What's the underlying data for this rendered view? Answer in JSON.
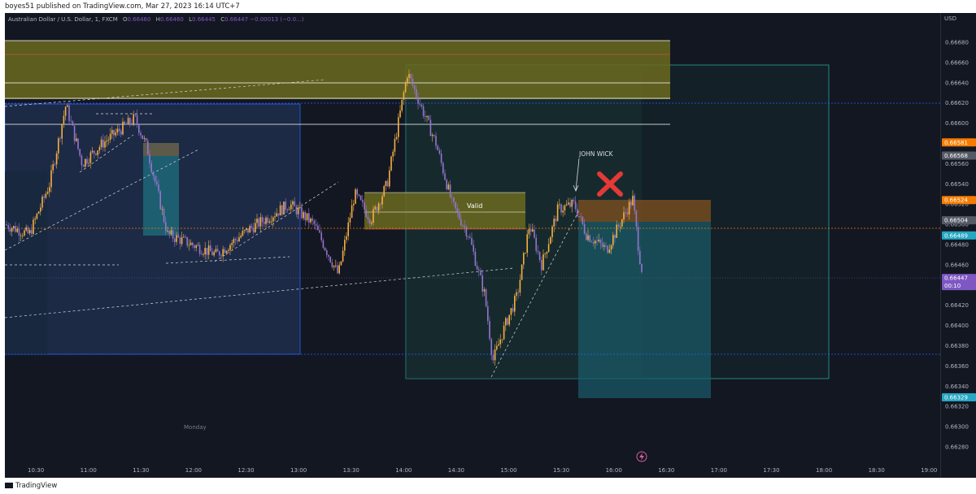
{
  "header": {
    "publisher_line": "boyes51 published on TradingView.com, Mar 27, 2023 16:14 UTC+7"
  },
  "legend": {
    "symbol": "Australian Dollar / U.S. Dollar, 1, FXCM",
    "o_label": "O",
    "o": "0.66460",
    "h_label": "H",
    "h": "0.66460",
    "l_label": "L",
    "l": "0.66445",
    "c_label": "C",
    "c": "0.66447",
    "change": "−0.00013 (−0.0...)"
  },
  "price_axis": {
    "currency": "USD",
    "ticks": [
      "0.66680",
      "0.66660",
      "0.66640",
      "0.66620",
      "0.66600",
      "0.66580",
      "0.66560",
      "0.66540",
      "0.66520",
      "0.66500",
      "0.66480",
      "0.66460",
      "0.66440",
      "0.66420",
      "0.66400",
      "0.66380",
      "0.66360",
      "0.66340",
      "0.66320",
      "0.66300",
      "0.66280"
    ],
    "badges": [
      {
        "value": "0.66581",
        "color": "#f57c00"
      },
      {
        "value": "0.66568",
        "color": "#555a66"
      },
      {
        "value": "0.66524",
        "color": "#f57c00"
      },
      {
        "value": "0.66504",
        "color": "#555a66"
      },
      {
        "value": "0.66489",
        "color": "#26a7c2"
      },
      {
        "value": "0.66447",
        "sub": "00:10",
        "color": "#7e57c2"
      },
      {
        "value": "0.66329",
        "color": "#26a7c2"
      }
    ]
  },
  "time_axis": {
    "ticks": [
      "10:30",
      "11:00",
      "11:30",
      "12:00",
      "12:30",
      "13:00",
      "13:30",
      "14:00",
      "14:30",
      "15:00",
      "15:30",
      "16:00",
      "16:30",
      "17:00",
      "17:30",
      "18:00",
      "18:30",
      "19:00"
    ]
  },
  "annotations": {
    "valid": "Valid",
    "john_wick": "JOHN WICK",
    "monday": "Monday"
  },
  "colors": {
    "bg": "#131722",
    "up": "#f5b041",
    "down": "#9575cd",
    "zone": "#6b6a1f",
    "box": "#2962ff",
    "teal": "#26a69a"
  },
  "footer": {
    "brand": "TradingView"
  }
}
